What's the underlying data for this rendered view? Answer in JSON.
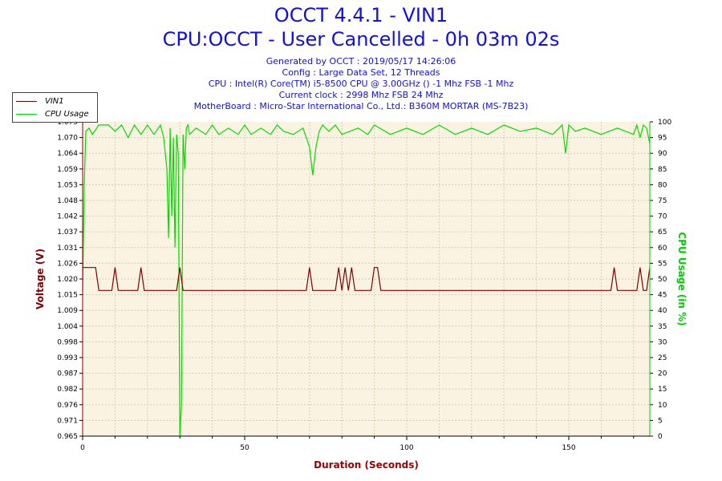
{
  "header": {
    "title1": "OCCT 4.4.1 - VIN1",
    "title2": "CPU:OCCT - User Cancelled - 0h 03m 02s",
    "info": [
      "Generated by OCCT : 2019/05/17 14:26:06",
      "Config : Large Data Set, 12 Threads",
      "CPU : Intel(R) Core(TM) i5-8500 CPU @ 3.00GHz () -1 Mhz FSB -1 Mhz",
      "Current clock : 2998 Mhz FSB 24 Mhz",
      "MotherBoard : Micro-Star International Co., Ltd.: B360M MORTAR (MS-7B23)"
    ]
  },
  "legend": {
    "vin1": "VIN1",
    "cpu": "CPU Usage"
  },
  "colors": {
    "vin1": "#800000",
    "cpu": "#00dd00",
    "plot_bg": "#fbf3e1",
    "grid": "#d8cbb0",
    "axis_left": "#800000",
    "axis_right": "#00cc00",
    "xlabel": "#990000"
  },
  "chart_data": {
    "type": "line",
    "title": "OCCT 4.4.1 - VIN1",
    "xlabel": "Duration (Seconds)",
    "ylabel": "Voltage (V)",
    "y2label": "CPU Usage (in %)",
    "xlim": [
      0,
      175
    ],
    "ylim": [
      0.965,
      1.075
    ],
    "y2lim": [
      0,
      100
    ],
    "x_ticks": [
      0,
      50,
      100,
      150
    ],
    "y_ticks": [
      "0.965",
      "0.971",
      "0.976",
      "0.982",
      "0.987",
      "0.993",
      "0.998",
      "1.004",
      "1.009",
      "1.015",
      "1.020",
      "1.026",
      "1.031",
      "1.037",
      "1.042",
      "1.048",
      "1.053",
      "1.059",
      "1.064",
      "1.070",
      "1.075"
    ],
    "y2_ticks": [
      0,
      5,
      10,
      15,
      20,
      25,
      30,
      35,
      40,
      45,
      50,
      55,
      60,
      65,
      70,
      75,
      80,
      85,
      90,
      95,
      100
    ],
    "grid": true,
    "legend_position": "top-left",
    "series": [
      {
        "name": "VIN1",
        "x": [
          0,
          4,
          5,
          9,
          10,
          11,
          17,
          18,
          19,
          29,
          30,
          31,
          69,
          70,
          71,
          78,
          79,
          80,
          81,
          82,
          83,
          84,
          89,
          90,
          91,
          92,
          163,
          164,
          165,
          171,
          172,
          173,
          174,
          175
        ],
        "y": [
          1.024,
          1.024,
          1.016,
          1.016,
          1.024,
          1.016,
          1.016,
          1.024,
          1.016,
          1.016,
          1.024,
          1.016,
          1.016,
          1.024,
          1.016,
          1.016,
          1.024,
          1.016,
          1.024,
          1.016,
          1.024,
          1.016,
          1.016,
          1.024,
          1.024,
          1.016,
          1.016,
          1.024,
          1.016,
          1.016,
          1.024,
          1.016,
          1.016,
          1.024
        ]
      },
      {
        "name": "CPU Usage",
        "x": [
          0,
          0.5,
          1,
          2,
          3,
          5,
          8,
          10,
          12,
          14,
          16,
          18,
          20,
          22,
          24,
          25,
          26,
          26.5,
          27,
          27.5,
          28,
          28.5,
          29,
          29.5,
          30,
          30.5,
          31,
          31.5,
          32,
          32.5,
          33,
          35,
          38,
          40,
          42,
          45,
          48,
          50,
          52,
          55,
          58,
          60,
          62,
          65,
          68,
          70,
          71,
          72,
          73,
          74,
          76,
          78,
          80,
          85,
          88,
          90,
          95,
          100,
          105,
          110,
          115,
          120,
          125,
          130,
          135,
          140,
          145,
          148,
          149,
          150,
          152,
          155,
          160,
          165,
          170,
          171,
          172,
          173,
          174,
          175
        ],
        "y": [
          46,
          80,
          97,
          98,
          96,
          99,
          99,
          97,
          99,
          95,
          99,
          96,
          99,
          96,
          99,
          95,
          85,
          63,
          98,
          70,
          95,
          60,
          96,
          90,
          0,
          10,
          96,
          85,
          98,
          99,
          96,
          98,
          96,
          99,
          96,
          98,
          96,
          99,
          96,
          98,
          96,
          99,
          97,
          96,
          98,
          92,
          83,
          92,
          97,
          99,
          97,
          99,
          96,
          98,
          96,
          99,
          96,
          98,
          96,
          99,
          96,
          98,
          96,
          99,
          97,
          98,
          96,
          99,
          90,
          99,
          97,
          98,
          96,
          98,
          96,
          99,
          95,
          99,
          98,
          93
        ]
      }
    ]
  }
}
